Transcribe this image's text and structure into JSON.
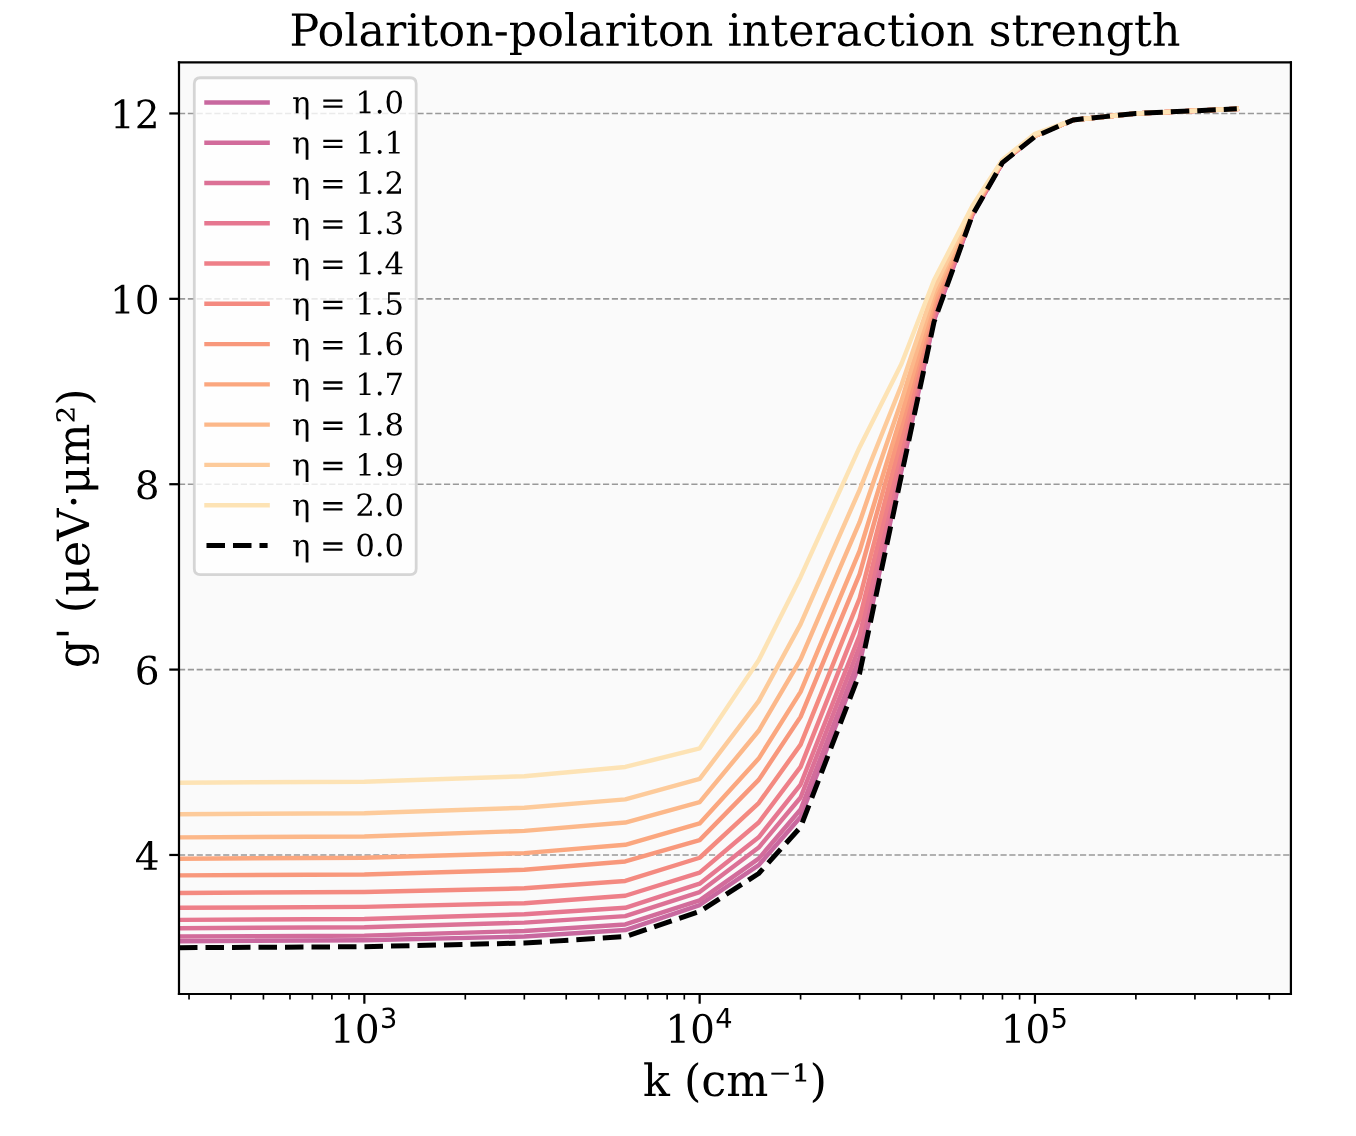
{
  "chart_data": {
    "type": "line",
    "title": "Polariton-polariton interaction strength",
    "xlabel": "k (cm⁻¹)",
    "ylabel": "g' (μeV·μm²)",
    "log": "x",
    "xlim": [
      280,
      580000
    ],
    "ylim": [
      2.5,
      12.55
    ],
    "xticks": [
      {
        "value": 1000,
        "label": "10$^{3}$"
      },
      {
        "value": 10000,
        "label": "10$^{4}$"
      },
      {
        "value": 100000,
        "label": "10$^{5}$"
      }
    ],
    "yticks": [
      4,
      6,
      8,
      10,
      12
    ],
    "grid": "y",
    "legend": "top left",
    "x": [
      280,
      1000,
      3000,
      6000,
      10000,
      15000,
      20000,
      30000,
      40000,
      50000,
      65000,
      80000,
      100000,
      130000,
      200000,
      400000
    ],
    "series": [
      {
        "name": "η = 1.0",
        "color": "#c8689f",
        "values": [
          3.07,
          3.08,
          3.12,
          3.19,
          3.46,
          3.89,
          4.41,
          6.06,
          8.15,
          9.77,
          10.9,
          11.47,
          11.76,
          11.93,
          12.0,
          12.05
        ]
      },
      {
        "name": "η = 1.1",
        "color": "#d26c9b",
        "values": [
          3.12,
          3.13,
          3.18,
          3.25,
          3.51,
          3.96,
          4.49,
          6.13,
          8.18,
          9.78,
          10.91,
          11.47,
          11.76,
          11.93,
          12.0,
          12.05
        ]
      },
      {
        "name": "η = 1.2",
        "color": "#dc7196",
        "values": [
          3.21,
          3.22,
          3.27,
          3.34,
          3.6,
          4.08,
          4.62,
          6.25,
          8.24,
          9.8,
          10.91,
          11.47,
          11.76,
          11.93,
          12.0,
          12.05
        ]
      },
      {
        "name": "η = 1.3",
        "color": "#e67790",
        "values": [
          3.3,
          3.31,
          3.36,
          3.43,
          3.69,
          4.19,
          4.76,
          6.37,
          8.3,
          9.83,
          10.92,
          11.48,
          11.76,
          11.93,
          12.0,
          12.05
        ]
      },
      {
        "name": "η = 1.4",
        "color": "#ee7f88",
        "values": [
          3.43,
          3.44,
          3.48,
          3.56,
          3.81,
          4.35,
          4.95,
          6.55,
          8.39,
          9.86,
          10.92,
          11.48,
          11.76,
          11.93,
          12.0,
          12.05
        ]
      },
      {
        "name": "η = 1.5",
        "color": "#f48a80",
        "values": [
          3.59,
          3.6,
          3.64,
          3.72,
          3.97,
          4.56,
          5.19,
          6.77,
          8.5,
          9.9,
          10.93,
          11.48,
          11.76,
          11.93,
          12.0,
          12.05
        ]
      },
      {
        "name": "η = 1.6",
        "color": "#f8987c",
        "values": [
          3.78,
          3.79,
          3.84,
          3.93,
          4.16,
          4.81,
          5.49,
          7.03,
          8.63,
          9.95,
          10.94,
          11.48,
          11.76,
          11.93,
          12.0,
          12.05
        ]
      },
      {
        "name": "η = 1.7",
        "color": "#fba77f",
        "values": [
          3.96,
          3.97,
          4.02,
          4.11,
          4.34,
          5.04,
          5.76,
          7.28,
          8.75,
          9.99,
          10.95,
          11.49,
          11.76,
          11.93,
          12.0,
          12.05
        ]
      },
      {
        "name": "η = 1.8",
        "color": "#fcb88a",
        "values": [
          4.19,
          4.2,
          4.26,
          4.35,
          4.57,
          5.34,
          6.11,
          7.59,
          8.9,
          10.05,
          10.97,
          11.49,
          11.76,
          11.93,
          12.0,
          12.05
        ]
      },
      {
        "name": "η = 1.9",
        "color": "#fdcb9b",
        "values": [
          4.44,
          4.45,
          4.51,
          4.6,
          4.82,
          5.66,
          6.49,
          7.94,
          9.07,
          10.11,
          10.98,
          11.49,
          11.76,
          11.93,
          12.0,
          12.05
        ]
      },
      {
        "name": "η = 2.0",
        "color": "#fde3b5",
        "values": [
          4.78,
          4.79,
          4.85,
          4.95,
          5.15,
          6.1,
          7.0,
          8.4,
          9.3,
          10.2,
          11.0,
          11.5,
          11.78,
          11.93,
          12.0,
          12.05
        ]
      },
      {
        "name": "η = 0.0",
        "color": "#000000",
        "line_style": "dashed",
        "values": [
          3.0,
          3.01,
          3.05,
          3.12,
          3.39,
          3.8,
          4.3,
          5.96,
          8.1,
          9.75,
          10.9,
          11.47,
          11.75,
          11.93,
          12.0,
          12.05
        ]
      }
    ]
  }
}
